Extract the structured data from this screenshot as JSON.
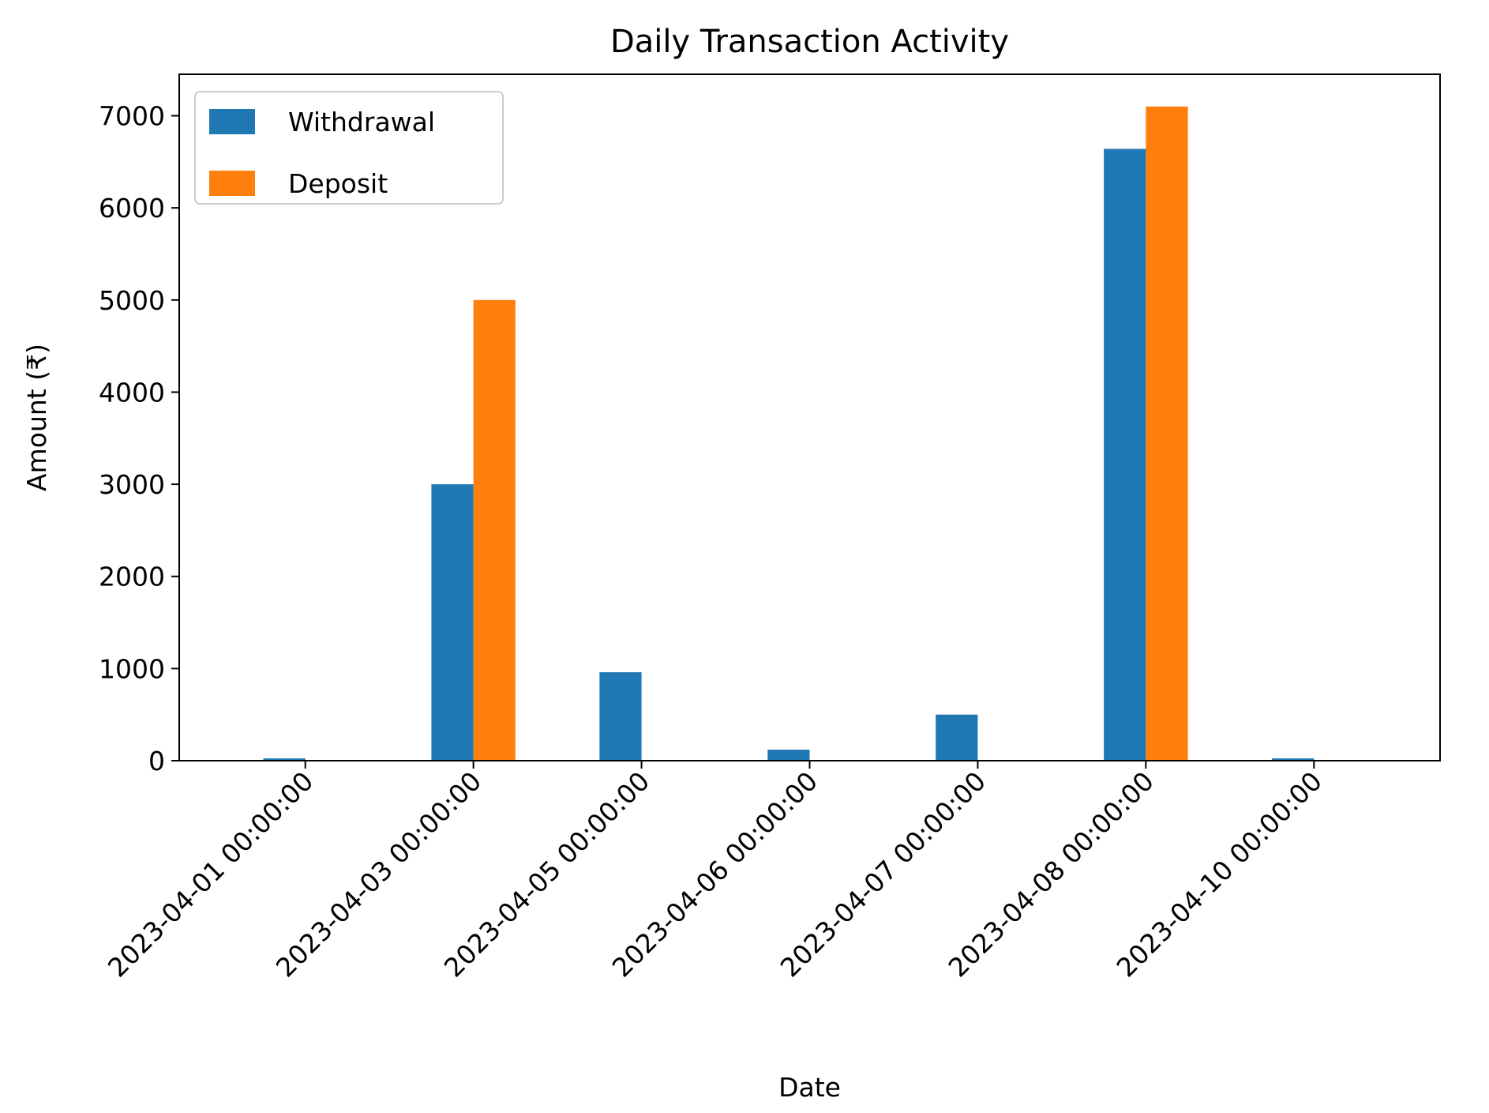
{
  "chart_data": {
    "type": "bar",
    "title": "Daily Transaction Activity",
    "xlabel": "Date",
    "ylabel": "Amount (₹)",
    "categories": [
      "2023-04-01 00:00:00",
      "2023-04-03 00:00:00",
      "2023-04-05 00:00:00",
      "2023-04-06 00:00:00",
      "2023-04-07 00:00:00",
      "2023-04-08 00:00:00",
      "2023-04-10 00:00:00"
    ],
    "series": [
      {
        "name": "Withdrawal",
        "color": "#1f77b4",
        "values": [
          25,
          3000,
          960,
          120,
          500,
          6640,
          25
        ]
      },
      {
        "name": "Deposit",
        "color": "#ff7f0e",
        "values": [
          0,
          5000,
          0,
          0,
          0,
          7100,
          0
        ]
      }
    ],
    "ylim": [
      0,
      7450
    ],
    "yticks": [
      0,
      1000,
      2000,
      3000,
      4000,
      5000,
      6000,
      7000
    ],
    "grid": false,
    "legend_position": "top-left",
    "x_tick_rotation": 45
  }
}
